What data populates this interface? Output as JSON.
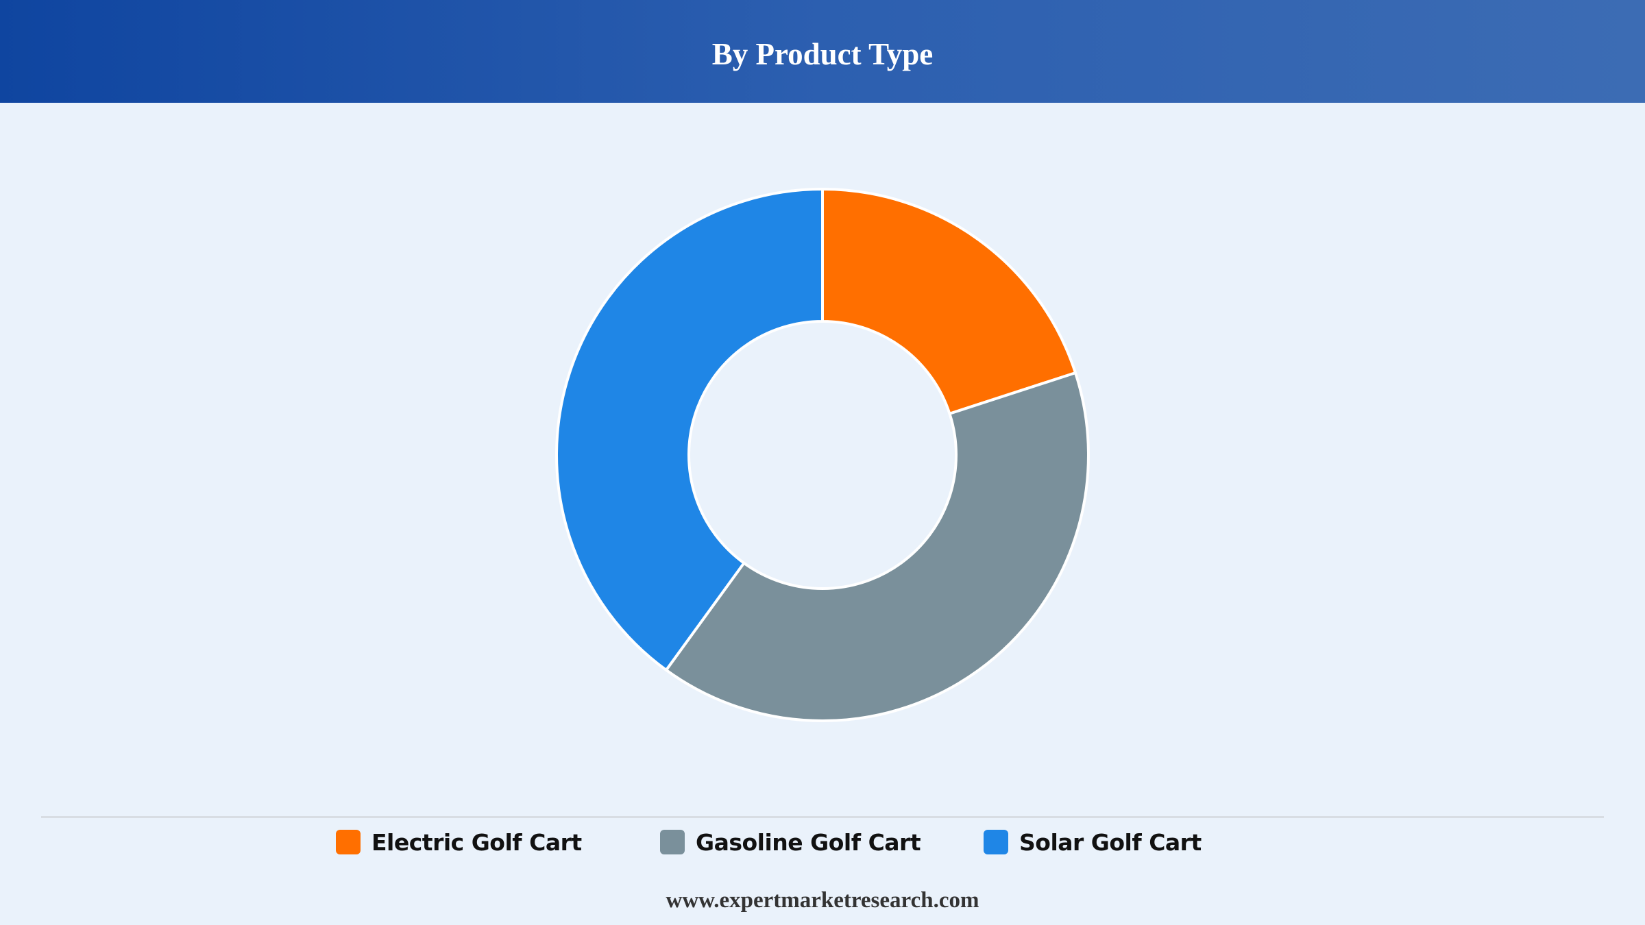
{
  "header": {
    "title": "By Product Type"
  },
  "chart_data": {
    "type": "pie",
    "variant": "donut",
    "title": "By Product Type",
    "categories": [
      "Electric Golf Cart",
      "Gasoline Golf Cart",
      "Solar Golf Cart"
    ],
    "values": [
      20,
      40,
      40
    ],
    "colors": [
      "#ff6f00",
      "#7a909b",
      "#1f86e6"
    ],
    "slice_border_color": "#ffffff",
    "legend_position": "bottom"
  },
  "legend": {
    "items": [
      {
        "label": "Electric Golf Cart",
        "color": "#ff6f00"
      },
      {
        "label": "Gasoline Golf Cart",
        "color": "#7a909b"
      },
      {
        "label": "Solar Golf Cart",
        "color": "#1f86e6"
      }
    ]
  },
  "footer": {
    "source": "www.expertmarketresearch.com"
  }
}
